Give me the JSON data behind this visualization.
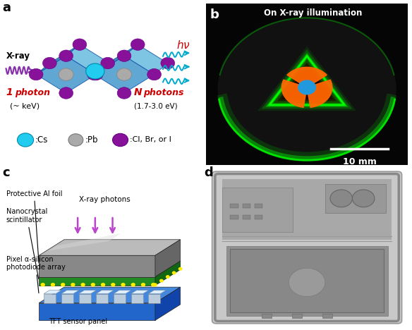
{
  "fig_width": 5.84,
  "fig_height": 4.68,
  "dpi": 100,
  "bg_color": "#ffffff",
  "panel_labels": [
    "a",
    "b",
    "c",
    "d"
  ],
  "panel_label_fontsize": 13,
  "panel_label_weight": "bold",
  "title_text": "On X-ray illumination",
  "scale_bar_text": "10 mm",
  "xray_color": "#8833AA",
  "photon_color": "#00AACC",
  "red_text_color": "#CC0000",
  "cs_color": "#22CCEE",
  "pb_color": "#AAAAAA",
  "halide_color": "#881199",
  "perov_face_color": "#4499CC",
  "perov_top_color": "#66BBDD",
  "perov_side_color": "#2277AA",
  "perov_edge_color": "#1155AA",
  "green_glow": "#00FF00",
  "orange_glow": "#FF6600",
  "blue_center": "#2299DD"
}
